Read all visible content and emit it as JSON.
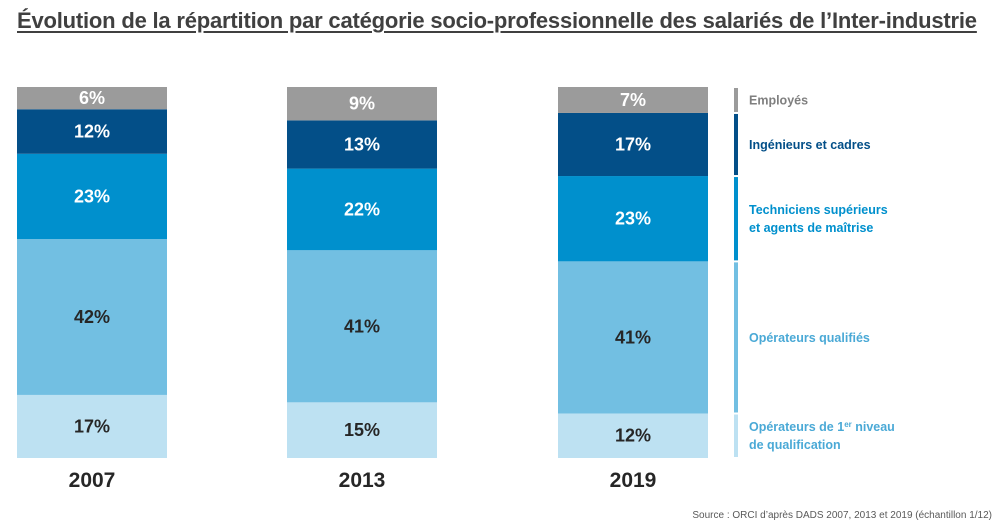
{
  "title": "Évolution de la répartition par catégorie socio-professionnelle des salariés de l’Inter-industrie",
  "source": "Source : ORCI d’après DADS 2007, 2013 et 2019 (échantillon 1/12)",
  "chart_data": {
    "type": "bar",
    "stacked": true,
    "normalized": "percent",
    "categories": [
      "2007",
      "2013",
      "2019"
    ],
    "series": [
      {
        "name": "Opérateurs de 1er niveau de qualification",
        "color": "#bde1f2",
        "text_color": "#262626",
        "values": [
          17,
          15,
          12
        ]
      },
      {
        "name": "Opérateurs qualifiés",
        "color": "#72bfe2",
        "text_color": "#262626",
        "values": [
          42,
          41,
          41
        ]
      },
      {
        "name": "Techniciens supérieurs et agents de maîtrise",
        "color": "#0090cd",
        "text_color": "#ffffff",
        "values": [
          23,
          22,
          23
        ]
      },
      {
        "name": "Ingénieurs et cadres",
        "color": "#034f88",
        "text_color": "#ffffff",
        "values": [
          12,
          13,
          17
        ]
      },
      {
        "name": "Employés",
        "color": "#9b9b9b",
        "text_color": "#ffffff",
        "values": [
          6,
          9,
          7
        ]
      }
    ],
    "value_suffix": "%",
    "legend": {
      "placement": "right",
      "entries": [
        {
          "lines": [
            "Employés"
          ],
          "color": "#9b9b9b"
        },
        {
          "lines": [
            "Ingénieurs et cadres"
          ],
          "color": "#034f88"
        },
        {
          "lines": [
            "Techniciens supérieurs",
            "et agents de maîtrise"
          ],
          "color": "#0090cd"
        },
        {
          "lines": [
            "Opérateurs qualifiés"
          ],
          "color": "#72bfe2"
        },
        {
          "lines": [
            "Opérateurs de 1er niveau",
            "de qualification"
          ],
          "superscript": "er",
          "color": "#bde1f2"
        }
      ]
    }
  }
}
